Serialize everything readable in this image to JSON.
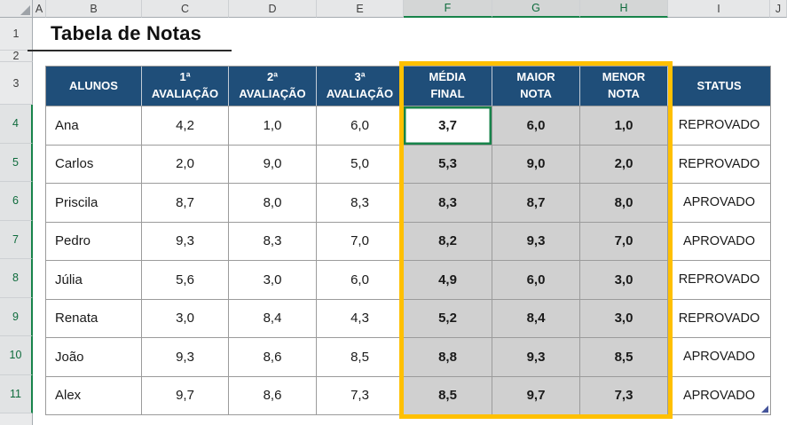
{
  "sheet": {
    "title": "Tabela de Notas",
    "columns": [
      "A",
      "B",
      "C",
      "D",
      "E",
      "F",
      "G",
      "H",
      "I",
      "J"
    ],
    "selected_columns": [
      "F",
      "G",
      "H"
    ],
    "row_numbers": [
      "1",
      "2",
      "3",
      "4",
      "5",
      "6",
      "7",
      "8",
      "9",
      "10",
      "11"
    ],
    "selected_rows": [
      "4",
      "5",
      "6",
      "7",
      "8",
      "9",
      "10",
      "11"
    ],
    "active_cell": {
      "ref": "F4",
      "value": "3,7"
    }
  },
  "table": {
    "headers": [
      "ALUNOS",
      "1ª\nAVALIAÇÃO",
      "2ª\nAVALIAÇÃO",
      "3ª\nAVALIAÇÃO",
      "MÉDIA\nFINAL",
      "MAIOR\nNOTA",
      "MENOR\nNOTA",
      "STATUS"
    ],
    "rows": [
      {
        "aluno": "Ana",
        "av1": "4,2",
        "av2": "1,0",
        "av3": "6,0",
        "media": "3,7",
        "maior": "6,0",
        "menor": "1,0",
        "status": "REPROVADO"
      },
      {
        "aluno": "Carlos",
        "av1": "2,0",
        "av2": "9,0",
        "av3": "5,0",
        "media": "5,3",
        "maior": "9,0",
        "menor": "2,0",
        "status": "REPROVADO"
      },
      {
        "aluno": "Priscila",
        "av1": "8,7",
        "av2": "8,0",
        "av3": "8,3",
        "media": "8,3",
        "maior": "8,7",
        "menor": "8,0",
        "status": "APROVADO"
      },
      {
        "aluno": "Pedro",
        "av1": "9,3",
        "av2": "8,3",
        "av3": "7,0",
        "media": "8,2",
        "maior": "9,3",
        "menor": "7,0",
        "status": "APROVADO"
      },
      {
        "aluno": "Júlia",
        "av1": "5,6",
        "av2": "3,0",
        "av3": "6,0",
        "media": "4,9",
        "maior": "6,0",
        "menor": "3,0",
        "status": "REPROVADO"
      },
      {
        "aluno": "Renata",
        "av1": "3,0",
        "av2": "8,4",
        "av3": "4,3",
        "media": "5,2",
        "maior": "8,4",
        "menor": "3,0",
        "status": "REPROVADO"
      },
      {
        "aluno": "João",
        "av1": "9,3",
        "av2": "8,6",
        "av3": "8,5",
        "media": "8,8",
        "maior": "9,3",
        "menor": "8,5",
        "status": "APROVADO"
      },
      {
        "aluno": "Alex",
        "av1": "9,7",
        "av2": "8,6",
        "av3": "7,3",
        "media": "8,5",
        "maior": "9,7",
        "menor": "7,3",
        "status": "APROVADO"
      }
    ]
  },
  "colors": {
    "header_bg": "#1F4E79",
    "selection_fill": "#D0D0D0",
    "highlight_border": "#FFC000",
    "accent_green": "#17834A"
  }
}
